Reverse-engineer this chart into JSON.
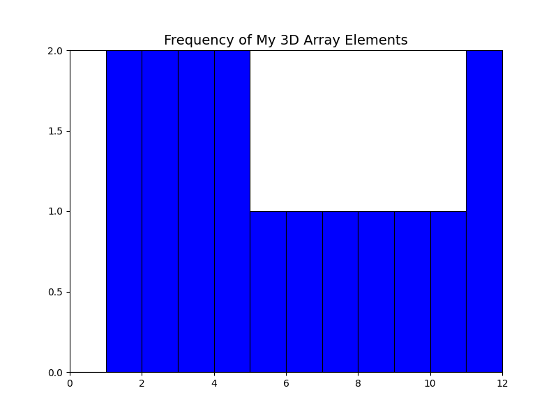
{
  "title": "Frequency of My 3D Array Elements",
  "bar_color": "#0000ff",
  "edge_color": "#000000",
  "xlim": [
    0,
    12
  ],
  "ylim": [
    0,
    2.0
  ],
  "xticks": [
    0,
    2,
    4,
    6,
    8,
    10,
    12
  ],
  "yticks": [
    0.0,
    0.5,
    1.0,
    1.5,
    2.0
  ],
  "figsize": [
    8.0,
    6.0
  ],
  "dpi": 100,
  "bins": [
    0,
    1,
    2,
    3,
    4,
    5,
    6,
    7,
    8,
    9,
    10,
    11,
    12
  ],
  "counts": [
    0,
    2,
    2,
    2,
    2,
    1,
    1,
    1,
    1,
    1,
    1,
    2
  ]
}
